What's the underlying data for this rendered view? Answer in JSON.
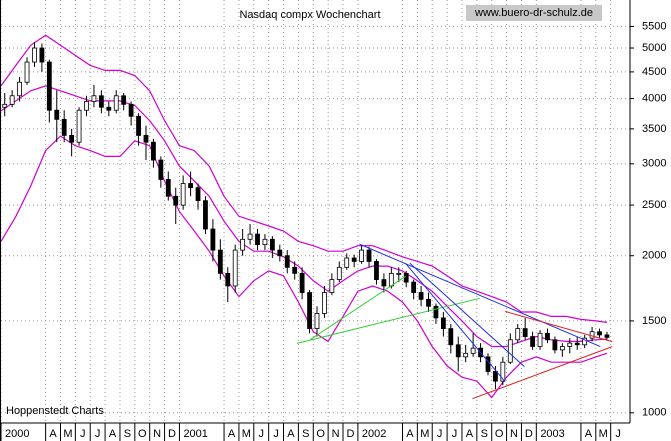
{
  "chart_data": {
    "type": "candlestick",
    "title": "Nasdaq compx Wochenchart",
    "source": "www.buero-dr-schulz.de",
    "credit": "Hoppenstedt Charts",
    "ylog": true,
    "grid": true,
    "xlim": [
      0,
      42.3
    ],
    "ylim": [
      956,
      6180
    ],
    "yticks": [
      1000,
      1500,
      2000,
      2500,
      3000,
      3500,
      4000,
      4500,
      5000,
      5500
    ],
    "xticks": [
      {
        "value": 0,
        "label": "2000"
      },
      {
        "value": 3,
        "label": "A"
      },
      {
        "value": 4,
        "label": "M"
      },
      {
        "value": 5,
        "label": "J"
      },
      {
        "value": 6,
        "label": "J"
      },
      {
        "value": 7,
        "label": "A"
      },
      {
        "value": 8,
        "label": "S"
      },
      {
        "value": 9,
        "label": "O"
      },
      {
        "value": 10,
        "label": "N"
      },
      {
        "value": 11,
        "label": "D"
      },
      {
        "value": 12,
        "label": "2001"
      },
      {
        "value": 15,
        "label": "A"
      },
      {
        "value": 16,
        "label": "M"
      },
      {
        "value": 17,
        "label": "J"
      },
      {
        "value": 18,
        "label": "J"
      },
      {
        "value": 19,
        "label": "A"
      },
      {
        "value": 20,
        "label": "S"
      },
      {
        "value": 21,
        "label": "O"
      },
      {
        "value": 22,
        "label": "N"
      },
      {
        "value": 23,
        "label": "D"
      },
      {
        "value": 24,
        "label": "2002"
      },
      {
        "value": 27,
        "label": "A"
      },
      {
        "value": 28,
        "label": "M"
      },
      {
        "value": 29,
        "label": "J"
      },
      {
        "value": 30,
        "label": "J"
      },
      {
        "value": 31,
        "label": "A"
      },
      {
        "value": 32,
        "label": "S"
      },
      {
        "value": 33,
        "label": "O"
      },
      {
        "value": 34,
        "label": "N"
      },
      {
        "value": 35,
        "label": "D"
      },
      {
        "value": 36,
        "label": "2003"
      },
      {
        "value": 39,
        "label": "A"
      },
      {
        "value": 40,
        "label": "M"
      },
      {
        "value": 41,
        "label": "J"
      }
    ],
    "candles": {
      "x": [
        0.25,
        0.75,
        1.25,
        1.75,
        2.25,
        2.75,
        3.25,
        3.75,
        4.25,
        4.75,
        5.25,
        5.75,
        6.25,
        6.75,
        7.25,
        7.75,
        8.25,
        8.75,
        9.25,
        9.75,
        10.25,
        10.75,
        11.25,
        11.75,
        12.25,
        12.75,
        13.25,
        13.75,
        14.25,
        14.75,
        15.25,
        15.75,
        16.25,
        16.75,
        17.25,
        17.75,
        18.25,
        18.75,
        19.25,
        19.75,
        20.25,
        20.75,
        21.25,
        21.75,
        22.25,
        22.75,
        23.25,
        23.75,
        24.25,
        24.75,
        25.25,
        25.75,
        26.25,
        26.75,
        27.25,
        27.75,
        28.25,
        28.75,
        29.25,
        29.75,
        30.25,
        30.75,
        31.25,
        31.75,
        32.25,
        32.75,
        33.25,
        33.75,
        34.25,
        34.75,
        35.25,
        35.75,
        36.25,
        36.75,
        37.25,
        37.75,
        38.25,
        38.75,
        39.25,
        39.75,
        40.25,
        40.75
      ],
      "open": [
        3850,
        3900,
        4050,
        4300,
        4700,
        5000,
        4700,
        3800,
        3650,
        3400,
        3300,
        3800,
        3950,
        4050,
        3850,
        3800,
        4050,
        3900,
        3700,
        3400,
        3300,
        3050,
        2800,
        2600,
        2500,
        2750,
        2700,
        2550,
        2250,
        2050,
        1850,
        1750,
        2050,
        2150,
        2200,
        2100,
        2150,
        2050,
        2000,
        1900,
        1850,
        1700,
        1450,
        1550,
        1700,
        1800,
        1900,
        1980,
        1950,
        2050,
        1950,
        1800,
        1750,
        1850,
        1850,
        1780,
        1700,
        1650,
        1600,
        1520,
        1450,
        1350,
        1280,
        1300,
        1330,
        1280,
        1200,
        1150,
        1250,
        1380,
        1450,
        1400,
        1340,
        1420,
        1380,
        1320,
        1340,
        1360,
        1350,
        1390,
        1430,
        1410
      ],
      "high": [
        4100,
        4150,
        4400,
        4800,
        5130,
        5100,
        4750,
        4150,
        3800,
        3500,
        3850,
        4050,
        4250,
        4150,
        3950,
        4150,
        4100,
        3950,
        3750,
        3550,
        3350,
        3100,
        2900,
        2700,
        2850,
        2900,
        2750,
        2600,
        2350,
        2150,
        1900,
        2100,
        2250,
        2300,
        2250,
        2200,
        2180,
        2100,
        2050,
        1950,
        1900,
        1720,
        1600,
        1750,
        1850,
        1950,
        2020,
        2010,
        2100,
        2080,
        1970,
        1850,
        1900,
        1900,
        1870,
        1800,
        1750,
        1700,
        1620,
        1560,
        1480,
        1400,
        1350,
        1420,
        1360,
        1300,
        1230,
        1280,
        1420,
        1480,
        1520,
        1430,
        1440,
        1450,
        1400,
        1360,
        1390,
        1400,
        1410,
        1460,
        1450,
        1430
      ],
      "low": [
        3700,
        3850,
        3950,
        4250,
        4600,
        4500,
        3600,
        3300,
        3300,
        3100,
        3250,
        3700,
        3850,
        3750,
        3700,
        3750,
        3800,
        3550,
        3250,
        3050,
        2950,
        2700,
        2550,
        2300,
        2450,
        2600,
        2450,
        2200,
        1950,
        1800,
        1630,
        1700,
        2000,
        2100,
        2050,
        2050,
        1980,
        1950,
        1850,
        1800,
        1650,
        1420,
        1400,
        1520,
        1680,
        1780,
        1880,
        1900,
        1930,
        1900,
        1760,
        1700,
        1730,
        1780,
        1740,
        1650,
        1600,
        1560,
        1480,
        1400,
        1300,
        1200,
        1250,
        1280,
        1250,
        1180,
        1110,
        1130,
        1240,
        1360,
        1380,
        1320,
        1320,
        1360,
        1300,
        1280,
        1300,
        1320,
        1330,
        1370,
        1390,
        1380
      ],
      "close": [
        3900,
        4050,
        4300,
        4700,
        5000,
        4700,
        3800,
        3650,
        3400,
        3300,
        3800,
        3950,
        4050,
        3850,
        3800,
        4050,
        3900,
        3700,
        3400,
        3300,
        3050,
        2800,
        2600,
        2500,
        2750,
        2700,
        2550,
        2250,
        2050,
        1850,
        1750,
        2050,
        2150,
        2200,
        2100,
        2150,
        2050,
        2000,
        1900,
        1850,
        1700,
        1450,
        1550,
        1700,
        1800,
        1900,
        1980,
        1950,
        2050,
        1950,
        1800,
        1750,
        1850,
        1850,
        1780,
        1700,
        1650,
        1600,
        1520,
        1450,
        1350,
        1280,
        1300,
        1330,
        1280,
        1200,
        1150,
        1250,
        1380,
        1450,
        1400,
        1340,
        1420,
        1380,
        1320,
        1340,
        1360,
        1350,
        1390,
        1430,
        1410,
        1395
      ]
    },
    "bands": {
      "x": [
        0,
        1,
        2,
        3,
        4,
        5,
        6,
        7,
        8,
        9,
        10,
        11,
        12,
        13,
        14,
        15,
        16,
        17,
        18,
        19,
        20,
        21,
        22,
        23,
        24,
        25,
        26,
        27,
        28,
        29,
        30,
        31,
        32,
        33,
        34,
        35,
        36,
        37,
        38,
        39,
        40,
        40.75
      ],
      "series": [
        {
          "color": "#d000d0",
          "values": [
            4230,
            4630,
            5060,
            5290,
            5060,
            4840,
            4630,
            4530,
            4530,
            4430,
            4140,
            3630,
            3250,
            3180,
            2970,
            2600,
            2380,
            2330,
            2280,
            2230,
            2130,
            2090,
            2040,
            2040,
            2090,
            2090,
            2040,
            1990,
            1950,
            1910,
            1830,
            1750,
            1710,
            1670,
            1630,
            1560,
            1560,
            1530,
            1530,
            1510,
            1500,
            1490
          ]
        },
        {
          "color": "#d000d0",
          "values": [
            3790,
            3960,
            4140,
            4230,
            4140,
            4050,
            3960,
            3960,
            3960,
            3880,
            3630,
            3320,
            2970,
            2780,
            2600,
            2330,
            2130,
            2040,
            2040,
            1990,
            1910,
            1790,
            1710,
            1790,
            1870,
            1910,
            1910,
            1870,
            1790,
            1710,
            1600,
            1500,
            1400,
            1340,
            1340,
            1370,
            1400,
            1380,
            1370,
            1370,
            1380,
            1385
          ]
        },
        {
          "color": "#d000d0",
          "values": [
            2130,
            2380,
            2720,
            3180,
            3390,
            3250,
            3180,
            3100,
            3100,
            3320,
            3250,
            2780,
            2430,
            2230,
            2040,
            1830,
            1670,
            1790,
            1870,
            1830,
            1630,
            1430,
            1370,
            1530,
            1710,
            1750,
            1710,
            1630,
            1500,
            1340,
            1230,
            1170,
            1150,
            1070,
            1170,
            1250,
            1280,
            1250,
            1250,
            1250,
            1280,
            1300
          ]
        }
      ]
    },
    "lines": [
      {
        "color": "#33cc33",
        "x": [
          19.9,
          32.2
        ],
        "values": [
          1358,
          1657
        ]
      },
      {
        "color": "#33cc33",
        "x": [
          20.8,
          27.2
        ],
        "values": [
          1381,
          1826
        ]
      },
      {
        "color": "#2030e0",
        "x": [
          24.1,
          40.3
        ],
        "values": [
          2105,
          1339
        ]
      },
      {
        "color": "#2030e0",
        "x": [
          27.2,
          33.9
        ],
        "values": [
          1934,
          1147
        ]
      },
      {
        "color": "#2030e0",
        "x": [
          27.5,
          35.2
        ],
        "values": [
          1934,
          1226
        ]
      },
      {
        "color": "#e02020",
        "x": [
          33.9,
          41.1
        ],
        "values": [
          1564,
          1369
        ]
      },
      {
        "color": "#e02020",
        "x": [
          31.7,
          41.1
        ],
        "values": [
          1064,
          1339
        ]
      }
    ]
  }
}
